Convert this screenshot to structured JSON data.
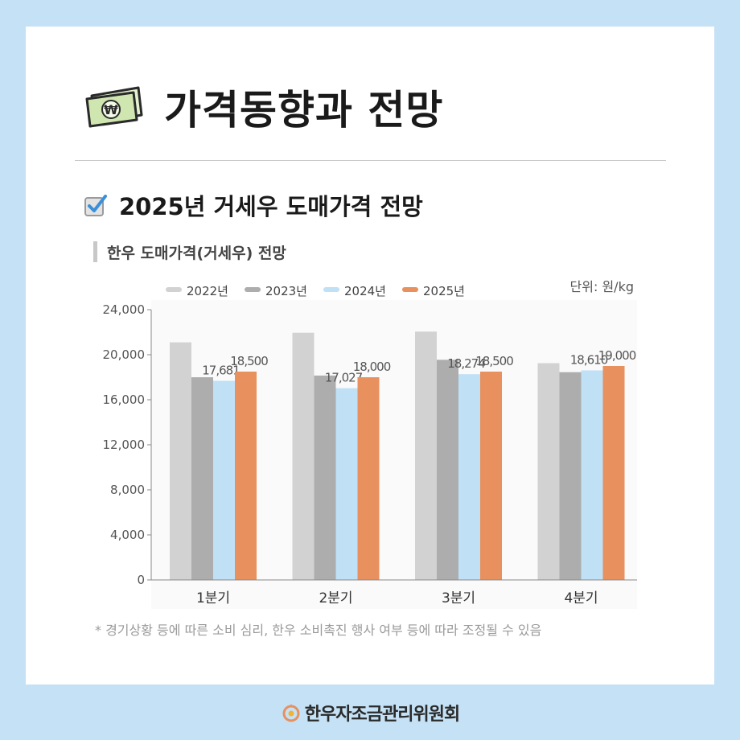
{
  "header": {
    "title": "가격동향과 전망"
  },
  "section": {
    "title": "2025년 거세우 도매가격 전망"
  },
  "subsection": {
    "title": "한우 도매가격(거세우) 전망"
  },
  "unit": "단위: 원/kg",
  "footnote": "* 경기상황 등에 따른 소비 심리, 한우 소비촉진 행사 여부 등에 따라 조정될 수 있음",
  "footer": {
    "org": "한우자조금관리위원회"
  },
  "icons": {
    "header": "money-bill-icon",
    "section": "checkbox-checked-icon",
    "footer": "hanwoo-logo-icon"
  },
  "chart_data": {
    "type": "bar",
    "categories": [
      "1분기",
      "2분기",
      "3분기",
      "4분기"
    ],
    "series": [
      {
        "name": "2022년",
        "color": "#d2d2d2",
        "values": [
          21100,
          21950,
          22050,
          19250
        ],
        "labels": [
          "",
          "",
          "",
          ""
        ]
      },
      {
        "name": "2023년",
        "color": "#adadad",
        "values": [
          18000,
          18150,
          19550,
          18450
        ],
        "labels": [
          "",
          "",
          "",
          ""
        ]
      },
      {
        "name": "2024년",
        "color": "#bfe0f5",
        "values": [
          17681,
          17027,
          18274,
          18610
        ],
        "labels": [
          "17,681",
          "17,027",
          "18,274",
          "18,610"
        ]
      },
      {
        "name": "2025년",
        "color": "#e8905e",
        "values": [
          18500,
          18000,
          18500,
          19000
        ],
        "labels": [
          "18,500",
          "18,000",
          "18,500",
          "19,000"
        ]
      }
    ],
    "yticks": [
      "0",
      "4,000",
      "8,000",
      "12,000",
      "16,000",
      "20,000",
      "24,000"
    ],
    "ylim": [
      0,
      24000
    ],
    "grid": false,
    "legend": "top"
  }
}
